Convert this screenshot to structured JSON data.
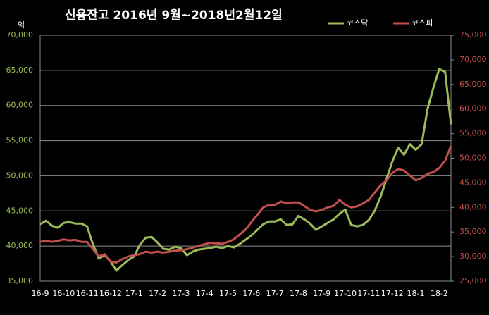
{
  "chart_data": {
    "type": "line",
    "title": "신용잔고 2016년 9월~2018년2월12일",
    "ylabel": "억",
    "categories": [
      "16-9",
      null,
      null,
      null,
      "16-10",
      null,
      null,
      null,
      "16-11",
      null,
      null,
      null,
      "16-12",
      null,
      null,
      null,
      "17-1",
      null,
      null,
      null,
      "17-2",
      null,
      null,
      null,
      "17-3",
      null,
      null,
      null,
      "17-4",
      null,
      null,
      null,
      "17-5",
      null,
      null,
      null,
      "17-6",
      null,
      null,
      null,
      "17-7",
      null,
      null,
      null,
      "17-8",
      null,
      null,
      null,
      "17-9",
      null,
      null,
      null,
      "17-10",
      null,
      null,
      null,
      "17-11",
      null,
      null,
      null,
      "17-12",
      null,
      null,
      null,
      "18-1",
      null,
      null,
      null,
      "18-2",
      null,
      null
    ],
    "series": [
      {
        "name": "코스닥",
        "color": "#9bbb59",
        "axis": "y",
        "values": [
          43100,
          43600,
          42900,
          42600,
          43300,
          43400,
          43200,
          43200,
          42800,
          40200,
          38200,
          38700,
          37800,
          36500,
          37300,
          38000,
          38500,
          40200,
          41200,
          41300,
          40500,
          39600,
          39500,
          39900,
          39700,
          38700,
          39200,
          39500,
          39600,
          39700,
          39900,
          39700,
          40000,
          39800,
          40300,
          40900,
          41500,
          42300,
          43100,
          43500,
          43500,
          43800,
          43000,
          43100,
          44300,
          43800,
          43200,
          42300,
          42800,
          43300,
          43800,
          44600,
          45200,
          43000,
          42800,
          43000,
          43700,
          45000,
          47000,
          49500,
          52000,
          54000,
          53000,
          54500,
          53700,
          54500,
          59500,
          62500,
          65200,
          64800,
          57300
        ]
      },
      {
        "name": "코스피",
        "color": "#c0504d",
        "axis": "y2",
        "values": [
          33000,
          33200,
          33000,
          33200,
          33500,
          33300,
          33400,
          33000,
          33000,
          31500,
          30000,
          30500,
          29000,
          28800,
          29500,
          30000,
          30300,
          30500,
          31000,
          30800,
          31000,
          30800,
          31000,
          31200,
          31300,
          31500,
          31800,
          32200,
          32500,
          32800,
          32700,
          32600,
          33000,
          33500,
          34500,
          35500,
          37000,
          38500,
          40000,
          40500,
          40500,
          41200,
          40800,
          41000,
          41000,
          40300,
          39500,
          39200,
          39500,
          40000,
          40300,
          41500,
          40500,
          40000,
          40200,
          40800,
          41500,
          43000,
          44500,
          45500,
          47000,
          47800,
          47500,
          46500,
          45500,
          46000,
          46800,
          47200,
          48000,
          49500,
          52500
        ]
      }
    ],
    "ylim": [
      35000,
      70000
    ],
    "yticks": [
      {
        "value": 35000,
        "label": "35,000"
      },
      {
        "value": 40000,
        "label": "40,000"
      },
      {
        "value": 45000,
        "label": "45,000"
      },
      {
        "value": 50000,
        "label": "50,000"
      },
      {
        "value": 55000,
        "label": "55,000"
      },
      {
        "value": 60000,
        "label": "60,000"
      },
      {
        "value": 65000,
        "label": "65,000"
      },
      {
        "value": 70000,
        "label": "70,000"
      }
    ],
    "y2lim": [
      25000,
      75000
    ],
    "y2ticks": [
      {
        "value": 25000,
        "label": "25,000"
      },
      {
        "value": 30000,
        "label": "30,000"
      },
      {
        "value": 35000,
        "label": "35,000"
      },
      {
        "value": 40000,
        "label": "40,000"
      },
      {
        "value": 45000,
        "label": "45,000"
      },
      {
        "value": 50000,
        "label": "50,000"
      },
      {
        "value": 55000,
        "label": "55,000"
      },
      {
        "value": 60000,
        "label": "60,000"
      },
      {
        "value": 65000,
        "label": "65,000"
      },
      {
        "value": 70000,
        "label": "70,000"
      },
      {
        "value": 75000,
        "label": "75,000"
      }
    ],
    "grid": true
  }
}
